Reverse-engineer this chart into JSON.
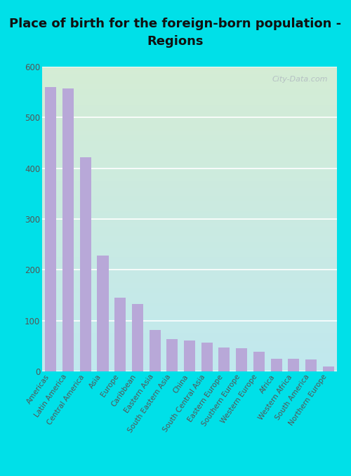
{
  "title": "Place of birth for the foreign-born population -\nRegions",
  "categories": [
    "Americas",
    "Latin America",
    "Central America",
    "Asia",
    "Europe",
    "Caribbean",
    "Eastern Asia",
    "South Eastern Asia",
    "China",
    "South Central Asia",
    "Eastern Europe",
    "Southern Europe",
    "Western Europe",
    "Africa",
    "Western Africa",
    "South America",
    "Northern Europe"
  ],
  "values": [
    560,
    557,
    422,
    228,
    145,
    133,
    82,
    63,
    60,
    57,
    47,
    46,
    39,
    25,
    24,
    23,
    9
  ],
  "bar_color": "#b8a8d8",
  "bg_color_outer": "#00e0e8",
  "bg_color_plot_top_left": "#d4ecd4",
  "bg_color_plot_bottom_right": "#c0e8ee",
  "title_fontsize": 13,
  "tick_fontsize": 7.5,
  "ylim": [
    0,
    600
  ],
  "yticks": [
    0,
    100,
    200,
    300,
    400,
    500,
    600
  ],
  "watermark": "City-Data.com"
}
